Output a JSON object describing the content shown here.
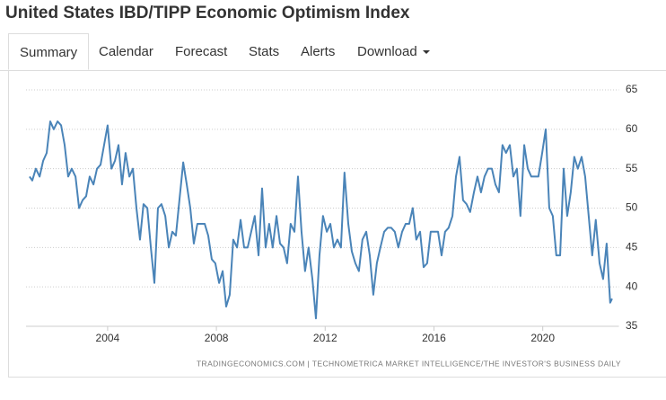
{
  "header": {
    "title": "United States IBD/TIPP Economic Optimism Index"
  },
  "tabs": [
    "Summary",
    "Calendar",
    "Forecast",
    "Stats",
    "Alerts",
    "Download"
  ],
  "chart_data": {
    "type": "line",
    "source": "TRADINGECONOMICS.COM  |  TECHNOMETRICA MARKET INTELLIGENCE/THE INVESTOR'S BUSINESS DAILY",
    "x": [
      2001.13,
      2001.23,
      2001.36,
      2001.5,
      2001.63,
      2001.76,
      2001.89,
      2002.02,
      2002.16,
      2002.29,
      2002.42,
      2002.55,
      2002.68,
      2002.82,
      2002.95,
      2003.08,
      2003.21,
      2003.34,
      2003.48,
      2003.61,
      2003.74,
      2003.87,
      2004.0,
      2004.14,
      2004.27,
      2004.4,
      2004.53,
      2004.66,
      2004.8,
      2004.93,
      2005.06,
      2005.19,
      2005.32,
      2005.46,
      2005.59,
      2005.72,
      2005.85,
      2005.98,
      2006.12,
      2006.25,
      2006.38,
      2006.51,
      2006.64,
      2006.78,
      2006.91,
      2007.04,
      2007.17,
      2007.3,
      2007.44,
      2007.57,
      2007.7,
      2007.83,
      2007.96,
      2008.1,
      2008.23,
      2008.36,
      2008.49,
      2008.62,
      2008.76,
      2008.89,
      2009.02,
      2009.15,
      2009.28,
      2009.41,
      2009.55,
      2009.68,
      2009.81,
      2009.94,
      2010.07,
      2010.21,
      2010.34,
      2010.47,
      2010.6,
      2010.73,
      2010.87,
      2011.0,
      2011.13,
      2011.26,
      2011.39,
      2011.53,
      2011.66,
      2011.79,
      2011.92,
      2012.06,
      2012.19,
      2012.32,
      2012.45,
      2012.58,
      2012.71,
      2012.85,
      2012.98,
      2013.11,
      2013.24,
      2013.37,
      2013.51,
      2013.64,
      2013.77,
      2013.9,
      2014.03,
      2014.17,
      2014.3,
      2014.43,
      2014.56,
      2014.69,
      2014.83,
      2014.96,
      2015.09,
      2015.22,
      2015.35,
      2015.49,
      2015.62,
      2015.75,
      2015.88,
      2016.02,
      2016.15,
      2016.28,
      2016.41,
      2016.54,
      2016.68,
      2016.81,
      2016.94,
      2017.07,
      2017.2,
      2017.33,
      2017.47,
      2017.6,
      2017.73,
      2017.86,
      2017.99,
      2018.13,
      2018.26,
      2018.39,
      2018.52,
      2018.65,
      2018.79,
      2018.92,
      2019.05,
      2019.18,
      2019.32,
      2019.45,
      2019.58,
      2019.71,
      2019.84,
      2019.98,
      2020.11,
      2020.24,
      2020.37,
      2020.5,
      2020.64,
      2020.77,
      2020.9,
      2021.03,
      2021.16,
      2021.29,
      2021.43,
      2021.56,
      2021.69,
      2021.82,
      2021.95,
      2022.09,
      2022.22,
      2022.35,
      2022.48,
      2022.55
    ],
    "series": [
      {
        "color": "#4a84b8",
        "values": [
          54,
          53.5,
          55,
          54,
          56,
          57,
          61,
          60,
          61,
          60.5,
          58,
          54,
          55,
          54,
          50,
          51,
          51.5,
          54,
          53,
          55,
          55.5,
          58,
          60.5,
          55,
          56,
          58,
          53,
          57,
          54,
          55,
          50,
          46,
          50.5,
          50,
          45,
          40.5,
          50,
          50.5,
          49,
          45,
          47,
          46.5,
          51,
          55.8,
          53,
          50,
          45.5,
          48,
          48,
          48,
          46.5,
          43.5,
          43,
          40.5,
          42,
          37.5,
          39,
          46,
          45,
          48.5,
          45,
          45,
          47,
          49,
          44,
          52.5,
          45,
          48,
          45,
          49,
          45.5,
          45,
          43,
          48,
          47,
          54,
          47,
          42,
          45,
          41,
          36,
          44,
          49,
          47,
          48,
          45,
          46,
          45,
          54.5,
          48,
          44.5,
          43,
          42,
          46,
          47,
          44,
          39,
          43,
          45,
          47,
          47.5,
          47.5,
          47,
          45,
          47,
          48,
          48,
          50,
          46,
          47,
          42.5,
          43,
          47,
          47,
          47,
          44,
          47,
          47.5,
          49,
          54,
          56.5,
          51,
          50.5,
          49.5,
          52,
          54,
          52,
          54,
          55,
          55,
          53,
          52,
          58,
          57,
          58,
          54,
          55,
          49,
          58,
          55,
          54,
          54,
          54,
          57,
          60,
          50,
          49,
          44,
          44,
          55,
          49,
          52,
          56.5,
          55,
          56.5,
          54,
          49,
          44,
          48.5,
          43,
          41,
          45.5,
          38,
          38.5
        ]
      }
    ],
    "xlim": [
      2001,
      2022.8
    ],
    "xticks": [
      2004,
      2008,
      2012,
      2016,
      2020
    ],
    "ylim": [
      35,
      65
    ],
    "yticks": [
      35,
      40,
      45,
      50,
      55,
      60,
      65
    ],
    "grid": true
  }
}
